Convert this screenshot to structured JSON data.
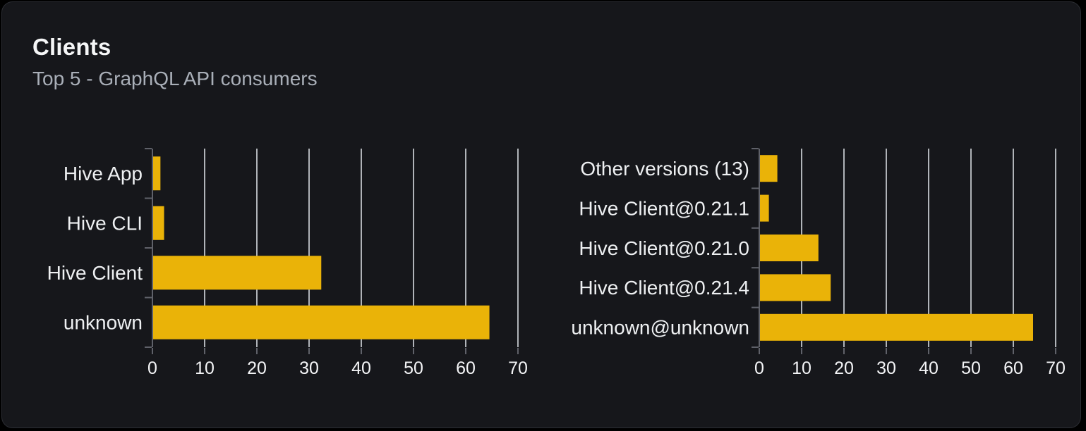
{
  "card": {
    "title": "Clients",
    "subtitle": "Top 5 - GraphQL API consumers",
    "background": "#16171b",
    "border_color": "#2b2d33"
  },
  "colors": {
    "page_background": "#000000",
    "bar": "#eab308",
    "gridline": "#d8dbe1",
    "axis": "#5f6169",
    "category_label": "#eef0f2",
    "tick_label": "#f4f5f7",
    "title": "#f5f6f7",
    "subtitle": "#a9afb8"
  },
  "chart_data": [
    {
      "type": "bar",
      "orientation": "horizontal",
      "title": "",
      "xlabel": "",
      "ylabel": "",
      "categories": [
        "Hive App",
        "Hive CLI",
        "Hive Client",
        "unknown"
      ],
      "values": [
        1.4,
        2.1,
        32.2,
        64.4
      ],
      "xlim": [
        0,
        70
      ],
      "xticks": [
        0,
        10,
        20,
        30,
        40,
        50,
        60,
        70
      ],
      "grid": true,
      "legend": false
    },
    {
      "type": "bar",
      "orientation": "horizontal",
      "title": "",
      "xlabel": "",
      "ylabel": "",
      "categories": [
        "Other versions (13)",
        "Hive Client@0.21.1",
        "Hive Client@0.21.0",
        "Hive Client@0.21.4",
        "unknown@unknown"
      ],
      "values": [
        4.1,
        2.1,
        13.8,
        16.7,
        64.5
      ],
      "xlim": [
        0,
        70
      ],
      "xticks": [
        0,
        10,
        20,
        30,
        40,
        50,
        60,
        70
      ],
      "grid": true,
      "legend": false
    }
  ]
}
